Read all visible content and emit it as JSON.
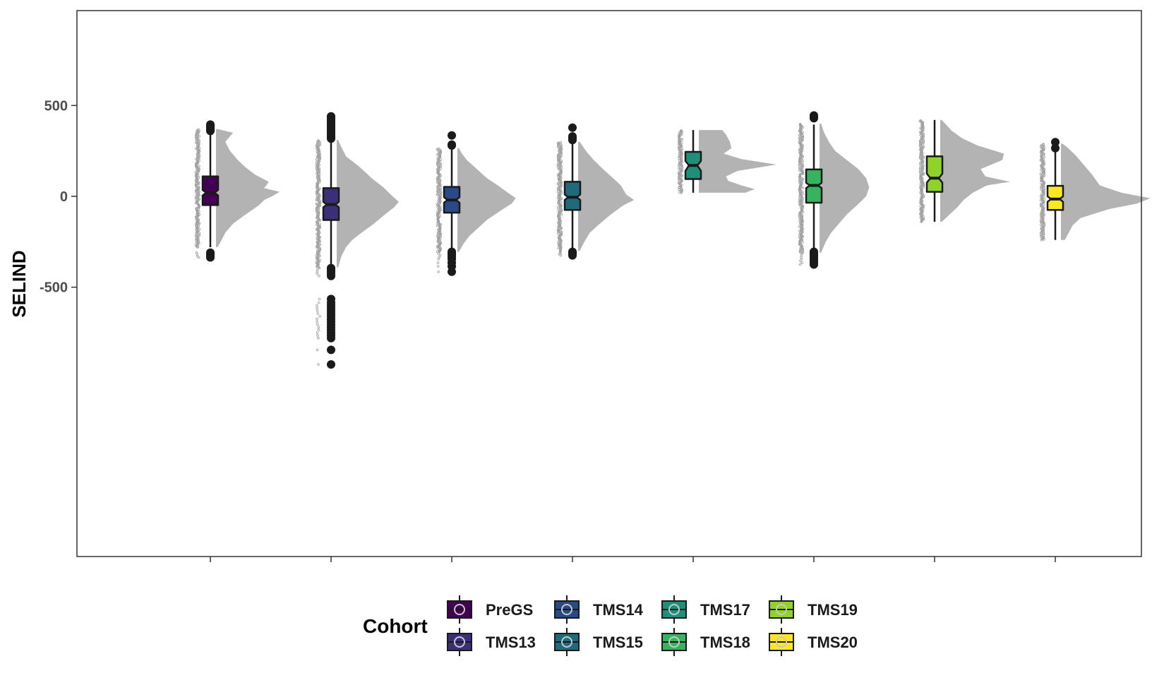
{
  "chart_data": {
    "type": "boxplot",
    "ylabel": "SELIND",
    "ylim": [
      -1000,
      500
    ],
    "yticks": [
      500,
      0,
      -500
    ],
    "grid": false,
    "legend": {
      "title": "Cohort",
      "position": "bottom"
    },
    "series": [
      {
        "name": "PreGS",
        "color": "#440154",
        "min": -280,
        "q1": -48,
        "median": 20,
        "q3": 110,
        "max": 360,
        "notch": [
          5,
          35
        ],
        "outliers_high": [
          395,
          390,
          385,
          380,
          375,
          370,
          365,
          360
        ],
        "outliers_low": [
          -310,
          -320,
          -330,
          -336
        ],
        "density_range": [
          -280,
          370
        ],
        "density": [
          [
            -280,
            0.02
          ],
          [
            -250,
            0.06
          ],
          [
            -200,
            0.12
          ],
          [
            -150,
            0.22
          ],
          [
            -100,
            0.38
          ],
          [
            -50,
            0.55
          ],
          [
            -20,
            0.62
          ],
          [
            0,
            0.72
          ],
          [
            25,
            0.82
          ],
          [
            45,
            0.62
          ],
          [
            80,
            0.68
          ],
          [
            120,
            0.5
          ],
          [
            160,
            0.38
          ],
          [
            200,
            0.28
          ],
          [
            250,
            0.18
          ],
          [
            300,
            0.12
          ],
          [
            350,
            0.22
          ],
          [
            370,
            0.02
          ]
        ]
      },
      {
        "name": "TMS13",
        "color": "#3b2f77",
        "min": -390,
        "q1": -130,
        "median": -45,
        "q3": 45,
        "max": 310,
        "notch": [
          -60,
          -30
        ],
        "outliers_high": [
          440,
          435,
          425,
          415,
          405,
          395,
          385,
          375,
          365,
          355,
          345,
          335,
          325,
          318
        ],
        "outliers_low": [
          -395,
          -405,
          -415,
          -425,
          -438,
          -565,
          -585,
          -600,
          -615,
          -630,
          -645,
          -660,
          -675,
          -690,
          -705,
          -720,
          -735,
          -750,
          -765,
          -780,
          -845,
          -925
        ],
        "density_range": [
          -390,
          310
        ],
        "density": [
          [
            -390,
            0.02
          ],
          [
            -330,
            0.06
          ],
          [
            -280,
            0.12
          ],
          [
            -240,
            0.2
          ],
          [
            -200,
            0.32
          ],
          [
            -150,
            0.48
          ],
          [
            -100,
            0.62
          ],
          [
            -60,
            0.74
          ],
          [
            -30,
            0.8
          ],
          [
            0,
            0.72
          ],
          [
            50,
            0.6
          ],
          [
            100,
            0.45
          ],
          [
            160,
            0.3
          ],
          [
            220,
            0.12
          ],
          [
            280,
            0.05
          ],
          [
            310,
            0.02
          ]
        ]
      },
      {
        "name": "TMS14",
        "color": "#2a4a86",
        "min": -305,
        "q1": -90,
        "median": -20,
        "q3": 52,
        "max": 260,
        "notch": [
          -35,
          -5
        ],
        "outliers_high": [
          335,
          285,
          280
        ],
        "outliers_low": [
          -305,
          -315,
          -325,
          -335,
          -345,
          -365,
          -385,
          -415
        ],
        "density_range": [
          -305,
          265
        ],
        "density": [
          [
            -305,
            0.02
          ],
          [
            -260,
            0.08
          ],
          [
            -220,
            0.15
          ],
          [
            -180,
            0.25
          ],
          [
            -130,
            0.38
          ],
          [
            -80,
            0.55
          ],
          [
            -40,
            0.7
          ],
          [
            -10,
            0.75
          ],
          [
            20,
            0.65
          ],
          [
            60,
            0.52
          ],
          [
            100,
            0.38
          ],
          [
            150,
            0.25
          ],
          [
            200,
            0.12
          ],
          [
            240,
            0.05
          ],
          [
            265,
            0.02
          ]
        ]
      },
      {
        "name": "TMS15",
        "color": "#1f6b7c",
        "min": -300,
        "q1": -75,
        "median": -5,
        "q3": 80,
        "max": 295,
        "notch": [
          -20,
          10
        ],
        "outliers_high": [
          378,
          330,
          320,
          310
        ],
        "outliers_low": [
          -305,
          -312,
          -318,
          -325
        ],
        "density_range": [
          -300,
          300
        ],
        "density": [
          [
            -300,
            0.02
          ],
          [
            -250,
            0.08
          ],
          [
            -200,
            0.15
          ],
          [
            -150,
            0.28
          ],
          [
            -100,
            0.42
          ],
          [
            -50,
            0.58
          ],
          [
            -20,
            0.72
          ],
          [
            10,
            0.62
          ],
          [
            60,
            0.55
          ],
          [
            100,
            0.45
          ],
          [
            150,
            0.32
          ],
          [
            200,
            0.2
          ],
          [
            250,
            0.1
          ],
          [
            300,
            0.02
          ]
        ]
      },
      {
        "name": "TMS17",
        "color": "#1f8f7a",
        "min": 20,
        "q1": 95,
        "median": 170,
        "q3": 245,
        "max": 365,
        "notch": [
          140,
          195
        ],
        "outliers_high": [],
        "outliers_low": [],
        "density_range": [
          20,
          365
        ],
        "density": [
          [
            20,
            0.6
          ],
          [
            40,
            0.72
          ],
          [
            60,
            0.55
          ],
          [
            85,
            0.38
          ],
          [
            110,
            0.35
          ],
          [
            140,
            0.5
          ],
          [
            175,
            1.0
          ],
          [
            205,
            0.55
          ],
          [
            235,
            0.32
          ],
          [
            265,
            0.42
          ],
          [
            300,
            0.4
          ],
          [
            340,
            0.35
          ],
          [
            365,
            0.3
          ]
        ]
      },
      {
        "name": "TMS18",
        "color": "#35b35f",
        "min": -310,
        "q1": -35,
        "median": 60,
        "q3": 148,
        "max": 395,
        "notch": [
          45,
          75
        ],
        "outliers_high": [
          445,
          435,
          430
        ],
        "outliers_low": [
          -305,
          -315,
          -325,
          -335,
          -345,
          -355,
          -365,
          -375
        ],
        "density_range": [
          -310,
          400
        ],
        "density": [
          [
            -310,
            0.02
          ],
          [
            -250,
            0.08
          ],
          [
            -200,
            0.15
          ],
          [
            -150,
            0.25
          ],
          [
            -100,
            0.35
          ],
          [
            -50,
            0.48
          ],
          [
            0,
            0.6
          ],
          [
            50,
            0.64
          ],
          [
            100,
            0.6
          ],
          [
            150,
            0.5
          ],
          [
            200,
            0.35
          ],
          [
            250,
            0.2
          ],
          [
            300,
            0.12
          ],
          [
            350,
            0.06
          ],
          [
            400,
            0.02
          ]
        ]
      },
      {
        "name": "TMS19",
        "color": "#8fd22a",
        "min": -140,
        "q1": 25,
        "median": 100,
        "q3": 220,
        "max": 420,
        "notch": [
          75,
          125
        ],
        "outliers_high": [],
        "outliers_low": [],
        "density_range": [
          -140,
          420
        ],
        "density": [
          [
            -140,
            0.02
          ],
          [
            -100,
            0.12
          ],
          [
            -60,
            0.22
          ],
          [
            -20,
            0.3
          ],
          [
            20,
            0.42
          ],
          [
            60,
            0.6
          ],
          [
            80,
            0.9
          ],
          [
            110,
            0.58
          ],
          [
            150,
            0.52
          ],
          [
            200,
            0.8
          ],
          [
            235,
            0.82
          ],
          [
            280,
            0.48
          ],
          [
            320,
            0.28
          ],
          [
            360,
            0.15
          ],
          [
            420,
            0.02
          ]
        ]
      },
      {
        "name": "TMS20",
        "color": "#fde725",
        "min": -240,
        "q1": -75,
        "median": -15,
        "q3": 58,
        "max": 260,
        "notch": [
          -30,
          0
        ],
        "outliers_high": [
          298,
          265
        ],
        "outliers_low": [],
        "density_range": [
          -240,
          290
        ],
        "density": [
          [
            -240,
            0.05
          ],
          [
            -200,
            0.1
          ],
          [
            -160,
            0.15
          ],
          [
            -120,
            0.25
          ],
          [
            -70,
            0.62
          ],
          [
            -40,
            0.98
          ],
          [
            -10,
            1.15
          ],
          [
            20,
            0.78
          ],
          [
            60,
            0.5
          ],
          [
            120,
            0.4
          ],
          [
            180,
            0.28
          ],
          [
            230,
            0.18
          ],
          [
            270,
            0.08
          ],
          [
            290,
            0.02
          ]
        ]
      }
    ]
  }
}
